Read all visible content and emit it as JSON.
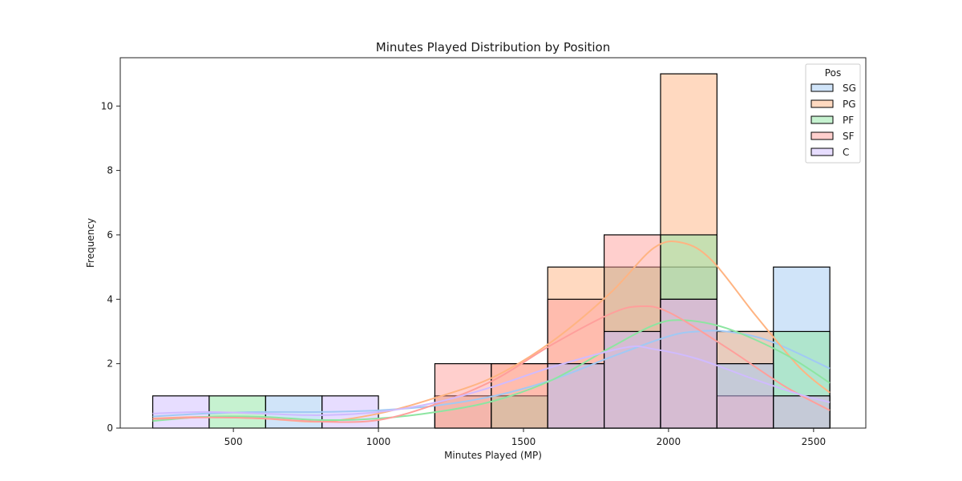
{
  "chart_data": {
    "type": "bar",
    "title": "Minutes Played Distribution by Position",
    "xlabel": "Minutes Played (MP)",
    "ylabel": "Frequency",
    "xlim": [
      110,
      2680
    ],
    "ylim": [
      0,
      11.5
    ],
    "x_ticks": [
      500,
      1000,
      1500,
      2000,
      2500
    ],
    "y_ticks": [
      0,
      2,
      4,
      6,
      8,
      10
    ],
    "bin_edges": [
      222,
      416.5,
      611,
      805.5,
      1000,
      1194.5,
      1389,
      1583.5,
      1778,
      1972.5,
      2167,
      2361.5,
      2556
    ],
    "legend": {
      "title": "Pos",
      "placement": "upper right"
    },
    "series": [
      {
        "name": "SG",
        "color": "#a1c9f4",
        "counts": [
          0,
          0,
          1,
          0,
          0,
          1,
          1,
          2,
          3,
          5,
          3,
          5
        ],
        "kde": [
          [
            222,
            0.36
          ],
          [
            400,
            0.45
          ],
          [
            600,
            0.5
          ],
          [
            800,
            0.5
          ],
          [
            1000,
            0.55
          ],
          [
            1200,
            0.7
          ],
          [
            1400,
            1.0
          ],
          [
            1600,
            1.5
          ],
          [
            1800,
            2.2
          ],
          [
            2000,
            2.85
          ],
          [
            2100,
            3.0
          ],
          [
            2200,
            3.0
          ],
          [
            2350,
            2.7
          ],
          [
            2556,
            1.85
          ]
        ]
      },
      {
        "name": "PG",
        "color": "#ffb482",
        "counts": [
          0,
          0,
          0,
          0,
          0,
          1,
          2,
          5,
          5,
          11,
          3,
          1
        ],
        "kde": [
          [
            222,
            0.3
          ],
          [
            400,
            0.35
          ],
          [
            600,
            0.3
          ],
          [
            800,
            0.2
          ],
          [
            1000,
            0.45
          ],
          [
            1200,
            0.95
          ],
          [
            1400,
            1.6
          ],
          [
            1600,
            2.7
          ],
          [
            1800,
            4.2
          ],
          [
            1950,
            5.6
          ],
          [
            2050,
            5.75
          ],
          [
            2150,
            5.2
          ],
          [
            2300,
            3.5
          ],
          [
            2450,
            1.9
          ],
          [
            2556,
            1.1
          ]
        ]
      },
      {
        "name": "PF",
        "color": "#8de5a1",
        "counts": [
          0,
          1,
          0,
          0,
          0,
          0,
          1,
          2,
          5,
          6,
          2,
          3
        ],
        "kde": [
          [
            222,
            0.22
          ],
          [
            400,
            0.35
          ],
          [
            600,
            0.35
          ],
          [
            800,
            0.25
          ],
          [
            1000,
            0.3
          ],
          [
            1200,
            0.5
          ],
          [
            1400,
            0.85
          ],
          [
            1600,
            1.5
          ],
          [
            1800,
            2.5
          ],
          [
            1950,
            3.2
          ],
          [
            2050,
            3.35
          ],
          [
            2200,
            3.1
          ],
          [
            2400,
            2.3
          ],
          [
            2556,
            1.4
          ]
        ]
      },
      {
        "name": "SF",
        "color": "#ff9f9b",
        "counts": [
          0,
          0,
          0,
          0,
          0,
          2,
          2,
          4,
          6,
          4,
          1,
          0
        ],
        "kde": [
          [
            222,
            0.28
          ],
          [
            400,
            0.33
          ],
          [
            600,
            0.3
          ],
          [
            800,
            0.2
          ],
          [
            1000,
            0.25
          ],
          [
            1200,
            0.75
          ],
          [
            1400,
            1.5
          ],
          [
            1600,
            2.6
          ],
          [
            1800,
            3.55
          ],
          [
            1900,
            3.78
          ],
          [
            2000,
            3.6
          ],
          [
            2200,
            2.5
          ],
          [
            2400,
            1.3
          ],
          [
            2556,
            0.55
          ]
        ]
      },
      {
        "name": "C",
        "color": "#d0bbff",
        "counts": [
          1,
          0,
          0,
          1,
          0,
          0,
          0,
          2,
          3,
          4,
          2,
          1
        ],
        "kde": [
          [
            222,
            0.45
          ],
          [
            400,
            0.5
          ],
          [
            600,
            0.45
          ],
          [
            800,
            0.4
          ],
          [
            1000,
            0.5
          ],
          [
            1200,
            0.8
          ],
          [
            1400,
            1.3
          ],
          [
            1600,
            1.9
          ],
          [
            1850,
            2.5
          ],
          [
            1950,
            2.45
          ],
          [
            2100,
            2.15
          ],
          [
            2300,
            1.5
          ],
          [
            2450,
            1.05
          ],
          [
            2556,
            0.8
          ]
        ]
      }
    ]
  }
}
